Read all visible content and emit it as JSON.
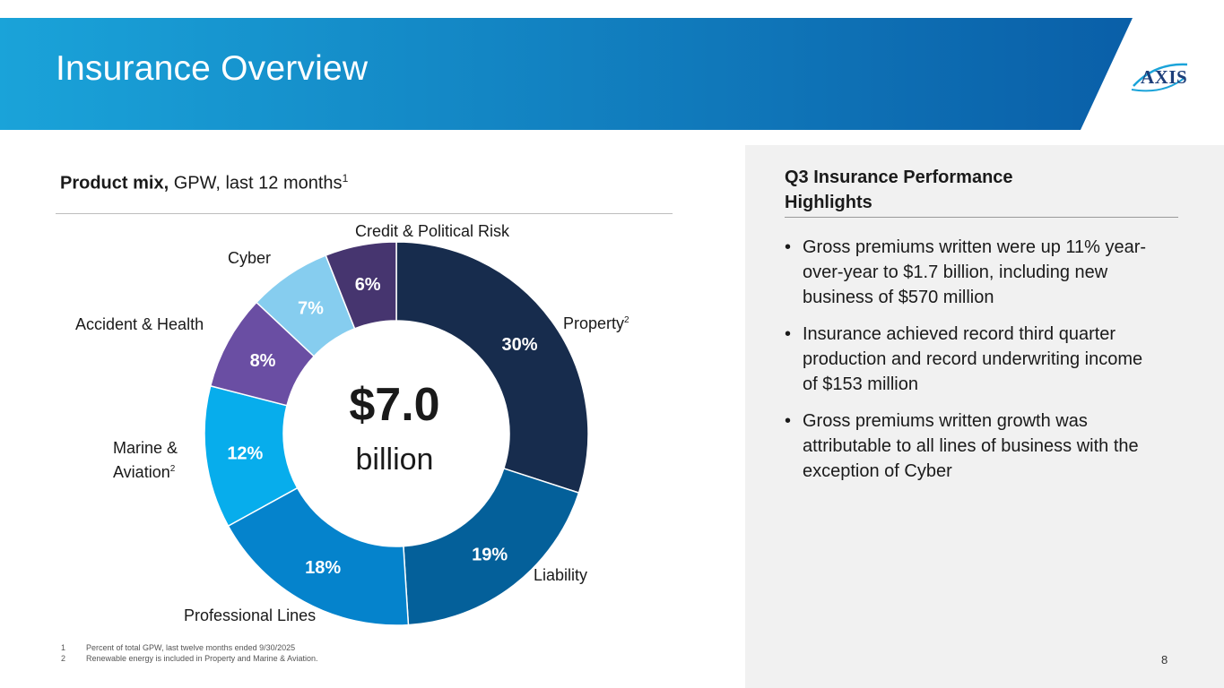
{
  "header": {
    "title": "Insurance Overview",
    "logo_text": "AXIS",
    "colors": {
      "banner_start": "#1aa3d9",
      "banner_end": "#0a5fa8"
    }
  },
  "left": {
    "heading_bold": "Product mix,",
    "heading_rest": " GPW, last 12 months",
    "heading_sup": "1",
    "center_value": "$7.0",
    "center_unit": "billion"
  },
  "chart_data": {
    "type": "pie",
    "title": "Product mix, GPW, last 12 months",
    "total": "$7.0 billion",
    "slices": [
      {
        "name": "Property",
        "sup": "2",
        "value": 30,
        "label": "30%",
        "color": "#172c4d"
      },
      {
        "name": "Liability",
        "sup": "",
        "value": 19,
        "label": "19%",
        "color": "#04609a"
      },
      {
        "name": "Professional Lines",
        "sup": "",
        "value": 18,
        "label": "18%",
        "color": "#0583cc"
      },
      {
        "name": "Marine & Aviation",
        "sup": "2",
        "value": 12,
        "label": "12%",
        "color": "#07adec"
      },
      {
        "name": "Accident & Health",
        "sup": "",
        "value": 8,
        "label": "8%",
        "color": "#6a4ea3"
      },
      {
        "name": "Cyber",
        "sup": "",
        "value": 7,
        "label": "7%",
        "color": "#86cdef"
      },
      {
        "name": "Credit & Political Risk",
        "sup": "",
        "value": 6,
        "label": "6%",
        "color": "#46356f"
      }
    ]
  },
  "panel": {
    "title": "Q3 Insurance Performance Highlights",
    "bullet_char": "•",
    "bullets": [
      "Gross premiums written were up 11% year-over-year to $1.7 billion, including new business of $570 million",
      "Insurance achieved record third quarter production and record underwriting income of $153 million",
      "Gross premiums written growth was attributable to all lines of business with the exception of Cyber"
    ]
  },
  "footnotes": [
    {
      "num": "1",
      "text": "Percent of total GPW, last twelve months ended 9/30/2025"
    },
    {
      "num": "2",
      "text": "Renewable energy is included in Property and Marine & Aviation."
    }
  ],
  "page_number": "8"
}
